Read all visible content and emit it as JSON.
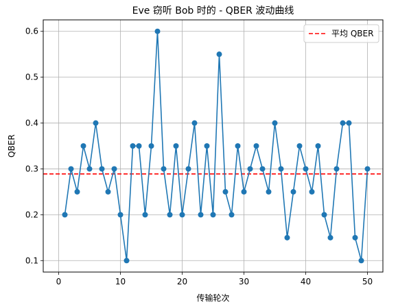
{
  "chart_data": {
    "type": "line",
    "title": "Eve 窃听 Bob 时的 - QBER 波动曲线",
    "xlabel": "传输轮次",
    "ylabel": "QBER",
    "xlim": [
      -2.5,
      52.5
    ],
    "ylim": [
      0.075,
      0.625
    ],
    "xticks": [
      0,
      10,
      20,
      30,
      40,
      50
    ],
    "yticks": [
      0.1,
      0.2,
      0.3,
      0.4,
      0.5,
      0.6
    ],
    "grid": true,
    "legend_position": "top-right",
    "series": [
      {
        "type": "line-marker",
        "color": "#1f77b4",
        "x": [
          1,
          2,
          3,
          4,
          5,
          6,
          7,
          8,
          9,
          10,
          11,
          12,
          13,
          14,
          15,
          16,
          17,
          18,
          19,
          20,
          21,
          22,
          23,
          24,
          25,
          26,
          27,
          28,
          29,
          30,
          31,
          32,
          33,
          34,
          35,
          36,
          37,
          38,
          39,
          40,
          41,
          42,
          43,
          44,
          45,
          46,
          47,
          48,
          49,
          50
        ],
        "values": [
          0.2,
          0.3,
          0.25,
          0.35,
          0.3,
          0.4,
          0.3,
          0.25,
          0.3,
          0.2,
          0.1,
          0.35,
          0.35,
          0.2,
          0.35,
          0.6,
          0.3,
          0.2,
          0.35,
          0.2,
          0.3,
          0.4,
          0.2,
          0.35,
          0.2,
          0.55,
          0.25,
          0.2,
          0.35,
          0.25,
          0.3,
          0.35,
          0.3,
          0.25,
          0.4,
          0.3,
          0.15,
          0.25,
          0.35,
          0.3,
          0.25,
          0.35,
          0.2,
          0.15,
          0.3,
          0.4,
          0.4,
          0.15,
          0.1,
          0.3
        ]
      },
      {
        "type": "hline",
        "name": "平均 QBER",
        "color": "#ff0000",
        "y": 0.289
      }
    ]
  }
}
